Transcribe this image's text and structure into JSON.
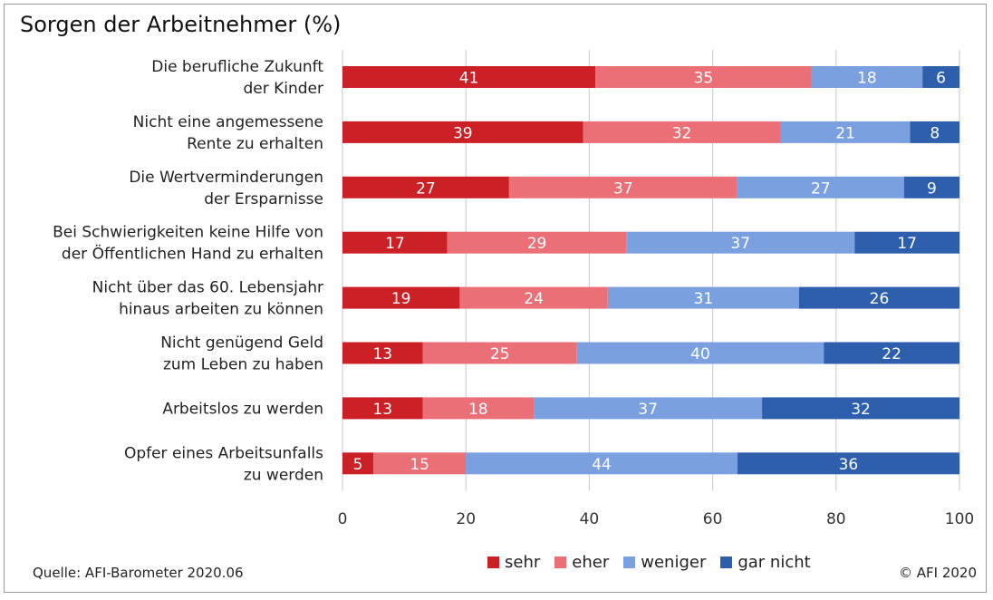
{
  "title": "Sorgen der Arbeitnehmer (%)",
  "source": "Quelle: AFI-Barometer 2020.06",
  "copyright": "© AFI 2020",
  "colors": {
    "sehr": "#cc2027",
    "eher": "#eb6f77",
    "weniger": "#7ba0df",
    "gar_nicht": "#2e5fac",
    "grid": "#d0d0d0",
    "axis_text": "#333333"
  },
  "chart_data": {
    "type": "bar",
    "orientation": "horizontal",
    "stacked": true,
    "categories": [
      [
        "Die berufliche Zukunft",
        "der Kinder"
      ],
      [
        "Nicht eine angemessene",
        "Rente zu erhalten"
      ],
      [
        "Die Wertverminderungen",
        "der Ersparnisse"
      ],
      [
        "Bei Schwierigkeiten keine Hilfe von",
        "der Öffentlichen Hand zu erhalten"
      ],
      [
        "Nicht über das 60. Lebensjahr",
        "hinaus arbeiten zu können"
      ],
      [
        "Nicht genügend Geld",
        "zum Leben zu haben"
      ],
      [
        "Arbeitslos zu werden"
      ],
      [
        "Opfer eines Arbeitsunfalls",
        "zu werden"
      ]
    ],
    "series": [
      {
        "name": "sehr",
        "color_key": "sehr",
        "values": [
          41,
          39,
          27,
          17,
          19,
          13,
          13,
          5
        ]
      },
      {
        "name": "eher",
        "color_key": "eher",
        "values": [
          35,
          32,
          37,
          29,
          24,
          25,
          18,
          15
        ]
      },
      {
        "name": "weniger",
        "color_key": "weniger",
        "values": [
          18,
          21,
          27,
          37,
          31,
          40,
          37,
          44
        ]
      },
      {
        "name": "gar nicht",
        "color_key": "gar_nicht",
        "values": [
          6,
          8,
          9,
          17,
          26,
          22,
          32,
          36
        ]
      }
    ],
    "xlim": [
      0,
      100
    ],
    "xticks": [
      0,
      20,
      40,
      60,
      80,
      100
    ],
    "grid": true,
    "legend_position": "bottom",
    "data_labels": true
  }
}
